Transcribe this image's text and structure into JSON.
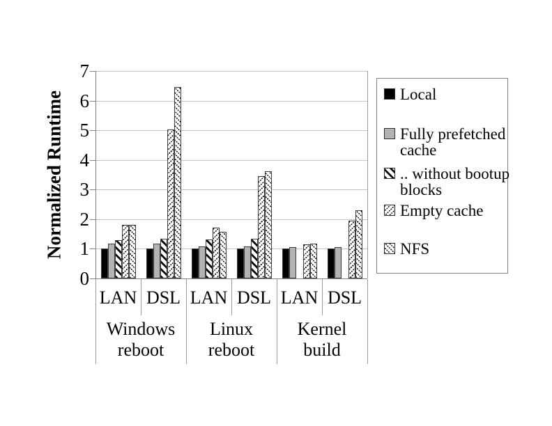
{
  "chart_data": {
    "type": "bar",
    "title": "",
    "xlabel": "",
    "ylabel": "Normalized Runtime",
    "ylim": [
      0,
      7
    ],
    "y_ticks": [
      0,
      1,
      2,
      3,
      4,
      5,
      6,
      7
    ],
    "grid": true,
    "legend_position": "right",
    "sub_labels": [
      "LAN",
      "DSL",
      "LAN",
      "DSL",
      "LAN",
      "DSL"
    ],
    "group_labels": [
      {
        "name": "Windows reboot",
        "lines": [
          "Windows",
          "reboot"
        ],
        "span": 2
      },
      {
        "name": "Linux reboot",
        "lines": [
          "Linux reboot"
        ],
        "span": 2
      },
      {
        "name": "Kernel build",
        "lines": [
          "Kernel build"
        ],
        "span": 2
      }
    ],
    "series": [
      {
        "name": "Local",
        "pattern": "solid-black",
        "legend_lines": [
          "Local"
        ],
        "values": [
          1.0,
          1.0,
          1.0,
          1.0,
          1.0,
          1.0
        ]
      },
      {
        "name": "Fully prefetched cache",
        "pattern": "solid-gray",
        "legend_lines": [
          "Fully prefetched",
          "cache"
        ],
        "values": [
          1.17,
          1.17,
          1.07,
          1.07,
          1.05,
          1.05
        ]
      },
      {
        "name": ".. without bootup blocks",
        "pattern": "diagonal-hatch",
        "legend_lines": [
          ".. without bootup",
          "blocks"
        ],
        "values": [
          1.3,
          1.34,
          1.32,
          1.35,
          null,
          null
        ]
      },
      {
        "name": "Empty cache",
        "pattern": "dotted-forward-diagonal",
        "legend_lines": [
          "Empty cache"
        ],
        "values": [
          1.82,
          5.02,
          1.72,
          3.45,
          1.15,
          1.95
        ]
      },
      {
        "name": "NFS",
        "pattern": "dotted-back-diagonal",
        "legend_lines": [
          "NFS"
        ],
        "values": [
          1.8,
          6.45,
          1.57,
          3.62,
          1.18,
          2.3
        ]
      }
    ],
    "colors": {
      "bar_black": "#000000",
      "bar_gray": "#b3b3b3",
      "pattern_ink": "#000000",
      "gridline": "#c3c3c3",
      "axis": "#808080",
      "background": "#ffffff"
    }
  }
}
